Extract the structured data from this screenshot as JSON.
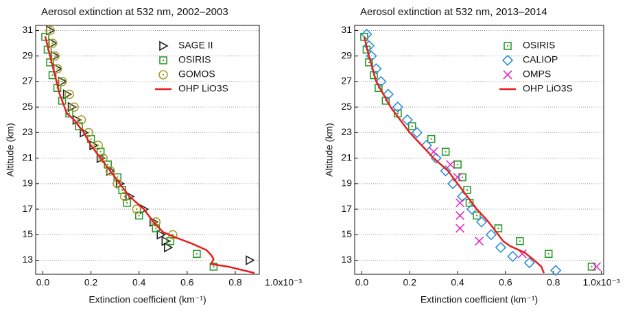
{
  "chart_data": [
    {
      "type": "scatter",
      "title": "Aerosol extinction at  532 nm, 2002–2003",
      "xlabel": "Extinction coefficient (km⁻¹)",
      "ylabel": "Altitude (km)",
      "xlim": [
        -0.03,
        0.9
      ],
      "ylim": [
        11.9,
        31.4
      ],
      "xticks": [
        {
          "value": 0,
          "label": "0.0"
        },
        0.2,
        0.4,
        0.6,
        0.8,
        {
          "value": 1.0,
          "label": "1.0x10⁻³"
        }
      ],
      "yticks": [
        13,
        15,
        17,
        19,
        21,
        23,
        25,
        27,
        29,
        31
      ],
      "grid": true,
      "legend": "upper right",
      "series": [
        {
          "name": "SAGE II",
          "color": "#222222",
          "marker": "triangle",
          "x": [
            0.03,
            0.04,
            0.05,
            0.06,
            0.08,
            0.1,
            0.12,
            0.14,
            0.17,
            0.21,
            0.24,
            0.28,
            0.32,
            0.36,
            0.42,
            0.46,
            0.49,
            0.51,
            0.52,
            0.86
          ],
          "values": [
            31,
            30,
            29,
            28,
            27,
            26,
            25,
            24,
            23,
            22,
            21,
            20,
            19,
            18,
            17,
            16,
            15,
            14.5,
            14,
            13
          ]
        },
        {
          "name": "OSIRIS",
          "color": "#2a9a2a",
          "marker": "square",
          "x": [
            0.01,
            0.02,
            0.03,
            0.04,
            0.06,
            0.08,
            0.11,
            0.15,
            0.2,
            0.24,
            0.27,
            0.31,
            0.33,
            0.35,
            0.4,
            0.47,
            0.53,
            0.64,
            0.71
          ],
          "values": [
            30.5,
            29.5,
            28.5,
            27.5,
            26.5,
            25.5,
            24.5,
            23.5,
            22.5,
            21.5,
            20.5,
            19.5,
            18.5,
            17.5,
            16.5,
            15.5,
            14.5,
            13.5,
            12.5
          ]
        },
        {
          "name": "GOMOS",
          "color": "#a8a030",
          "marker": "circle",
          "x": [
            0.03,
            0.04,
            0.05,
            0.06,
            0.08,
            0.11,
            0.13,
            0.16,
            0.19,
            0.23,
            0.25,
            0.28,
            0.31,
            0.34,
            0.39,
            0.47,
            0.54
          ],
          "values": [
            31,
            30,
            29,
            28,
            27,
            26,
            25,
            24,
            23,
            22,
            21,
            20,
            19,
            18,
            17,
            16,
            15
          ]
        },
        {
          "name": "OHP LiO3S",
          "color": "#e81c1c",
          "marker": "line",
          "x": [
            0.01,
            0.03,
            0.05,
            0.07,
            0.09,
            0.1,
            0.13,
            0.17,
            0.2,
            0.24,
            0.28,
            0.32,
            0.36,
            0.42,
            0.46,
            0.5,
            0.55,
            0.62,
            0.68,
            0.7,
            0.71,
            0.7,
            0.77,
            0.88
          ],
          "values": [
            30.5,
            29,
            27.5,
            26,
            25,
            24.5,
            24,
            23,
            22,
            21,
            20,
            19,
            18,
            17,
            16,
            15.2,
            14.8,
            14.3,
            13.8,
            13.4,
            13.1,
            12.7,
            12.5,
            12
          ]
        }
      ]
    },
    {
      "type": "scatter",
      "title": "Aerosol extinction at  532 nm, 2013–2014",
      "xlabel": "Extinction coefficient (km⁻¹)",
      "ylabel": "Altitude (km)",
      "xlim": [
        -0.03,
        1.01
      ],
      "ylim": [
        11.9,
        31.4
      ],
      "xticks": [
        {
          "value": 0,
          "label": "0.0"
        },
        0.2,
        0.4,
        0.6,
        0.8,
        {
          "value": 1.0,
          "label": "1.0x10⁻³"
        }
      ],
      "yticks": [
        13,
        15,
        17,
        19,
        21,
        23,
        25,
        27,
        29,
        31
      ],
      "grid": true,
      "legend": "upper right",
      "series": [
        {
          "name": "OSIRIS",
          "color": "#2a9a2a",
          "marker": "square",
          "x": [
            0.01,
            0.02,
            0.03,
            0.05,
            0.07,
            0.1,
            0.15,
            0.21,
            0.29,
            0.35,
            0.4,
            0.42,
            0.44,
            0.45,
            0.48,
            0.57,
            0.66,
            0.78,
            0.96
          ],
          "values": [
            30.5,
            29.5,
            28.5,
            27.5,
            26.5,
            25.5,
            24.5,
            23.5,
            22.5,
            21.5,
            20.5,
            19.5,
            18.5,
            17.5,
            16.5,
            15.5,
            14.5,
            13.5,
            12.5
          ]
        },
        {
          "name": "CALIOP",
          "color": "#2e8fd8",
          "marker": "diamond",
          "x": [
            0.02,
            0.03,
            0.04,
            0.06,
            0.08,
            0.11,
            0.15,
            0.19,
            0.23,
            0.27,
            0.31,
            0.35,
            0.38,
            0.42,
            0.46,
            0.5,
            0.54,
            0.58,
            0.63,
            0.7,
            0.81
          ],
          "values": [
            30.7,
            29.8,
            29,
            28,
            27,
            26,
            25,
            24,
            23,
            22,
            21,
            20,
            19,
            18,
            17,
            16,
            15,
            14,
            13.3,
            12.8,
            12.2
          ]
        },
        {
          "name": "OMPS",
          "color": "#e030c0",
          "marker": "cross",
          "x": [
            0.3,
            0.37,
            0.4,
            0.41,
            0.41,
            0.41,
            0.49,
            0.67,
            0.98
          ],
          "values": [
            21.5,
            20.5,
            19.5,
            17.5,
            16.5,
            15.5,
            14.5,
            13.5,
            12.5
          ]
        },
        {
          "name": "OHP LiO3S",
          "color": "#e81c1c",
          "marker": "line",
          "x": [
            0.01,
            0.03,
            0.06,
            0.09,
            0.12,
            0.16,
            0.2,
            0.25,
            0.3,
            0.36,
            0.4,
            0.44,
            0.48,
            0.52,
            0.55,
            0.57,
            0.59,
            0.62,
            0.68,
            0.72,
            0.75,
            0.76
          ],
          "values": [
            30.5,
            29,
            27,
            26,
            25,
            24,
            23,
            22,
            21,
            20,
            19,
            18,
            17,
            16.2,
            15.5,
            15,
            14.5,
            14.1,
            13.6,
            13,
            12.5,
            12
          ]
        }
      ]
    }
  ]
}
